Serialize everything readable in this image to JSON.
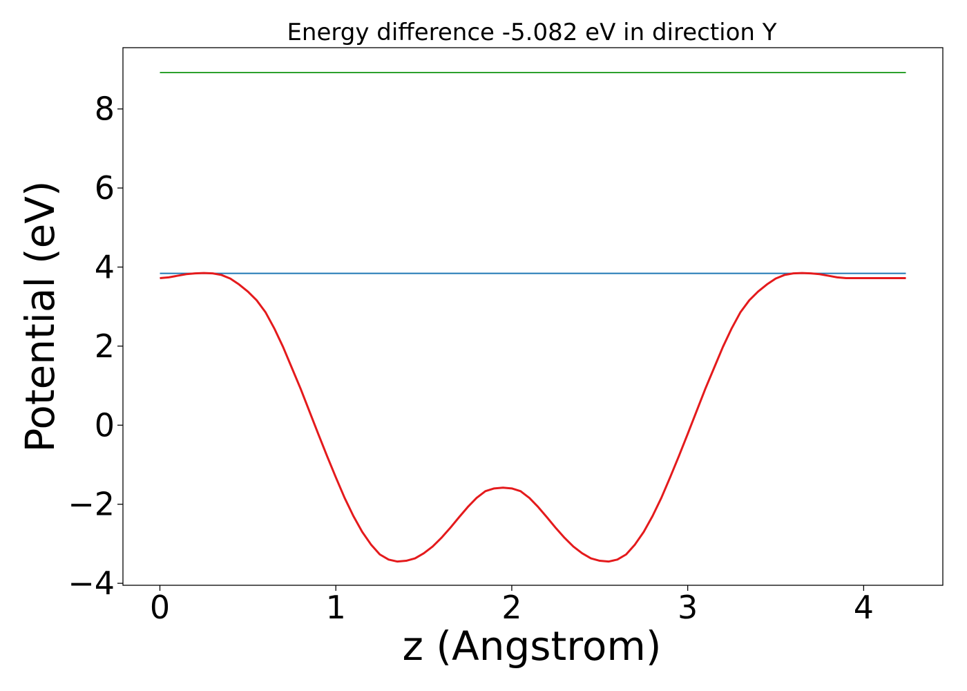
{
  "chart_data": {
    "type": "line",
    "title": "Energy difference -5.082 eV in direction Y",
    "xlabel": "z (Angstrom)",
    "ylabel": "Potential (eV)",
    "xlim": [
      -0.21,
      4.45
    ],
    "ylim": [
      -4.05,
      9.55
    ],
    "xticks": [
      0,
      1,
      2,
      3,
      4
    ],
    "xtick_labels": [
      "0",
      "1",
      "2",
      "3",
      "4"
    ],
    "yticks": [
      -4,
      -2,
      0,
      2,
      4,
      6,
      8
    ],
    "ytick_labels": [
      "−4",
      "−2",
      "0",
      "2",
      "4",
      "6",
      "8"
    ],
    "grid": false,
    "series": [
      {
        "color": "#2ca02c",
        "x": [
          0,
          4.24
        ],
        "y": [
          8.92,
          8.92
        ]
      },
      {
        "color": "#1f77b4",
        "x": [
          0,
          4.24
        ],
        "y": [
          3.84,
          3.84
        ]
      },
      {
        "color": "#e41a1c",
        "x": [
          0.0,
          0.05,
          0.1,
          0.15,
          0.2,
          0.25,
          0.3,
          0.35,
          0.4,
          0.45,
          0.5,
          0.55,
          0.6,
          0.65,
          0.7,
          0.75,
          0.8,
          0.85,
          0.9,
          0.95,
          1.0,
          1.05,
          1.1,
          1.15,
          1.2,
          1.25,
          1.3,
          1.35,
          1.4,
          1.45,
          1.5,
          1.55,
          1.6,
          1.65,
          1.7,
          1.75,
          1.8,
          1.85,
          1.9,
          1.95,
          2.0,
          2.05,
          2.1,
          2.15,
          2.2,
          2.25,
          2.3,
          2.35,
          2.4,
          2.45,
          2.5,
          2.55,
          2.6,
          2.65,
          2.7,
          2.75,
          2.8,
          2.85,
          2.9,
          2.95,
          3.0,
          3.05,
          3.1,
          3.15,
          3.2,
          3.25,
          3.3,
          3.35,
          3.4,
          3.45,
          3.5,
          3.55,
          3.6,
          3.65,
          3.7,
          3.75,
          3.8,
          3.85,
          3.9,
          3.95,
          4.0,
          4.05,
          4.1,
          4.15,
          4.2,
          4.24
        ],
        "y": [
          3.72,
          3.74,
          3.78,
          3.82,
          3.84,
          3.85,
          3.84,
          3.8,
          3.71,
          3.56,
          3.38,
          3.16,
          2.86,
          2.45,
          1.98,
          1.45,
          0.92,
          0.35,
          -0.22,
          -0.78,
          -1.32,
          -1.84,
          -2.3,
          -2.7,
          -3.02,
          -3.27,
          -3.4,
          -3.45,
          -3.43,
          -3.37,
          -3.24,
          -3.07,
          -2.85,
          -2.6,
          -2.33,
          -2.07,
          -1.84,
          -1.67,
          -1.6,
          -1.58,
          -1.6,
          -1.67,
          -1.84,
          -2.07,
          -2.33,
          -2.6,
          -2.85,
          -3.07,
          -3.24,
          -3.37,
          -3.43,
          -3.45,
          -3.4,
          -3.27,
          -3.02,
          -2.7,
          -2.3,
          -1.84,
          -1.32,
          -0.78,
          -0.22,
          0.35,
          0.92,
          1.45,
          1.98,
          2.45,
          2.86,
          3.16,
          3.38,
          3.56,
          3.71,
          3.8,
          3.84,
          3.85,
          3.84,
          3.82,
          3.78,
          3.74,
          3.72,
          3.72,
          3.72,
          3.72,
          3.72,
          3.72,
          3.72,
          3.72
        ]
      }
    ]
  }
}
